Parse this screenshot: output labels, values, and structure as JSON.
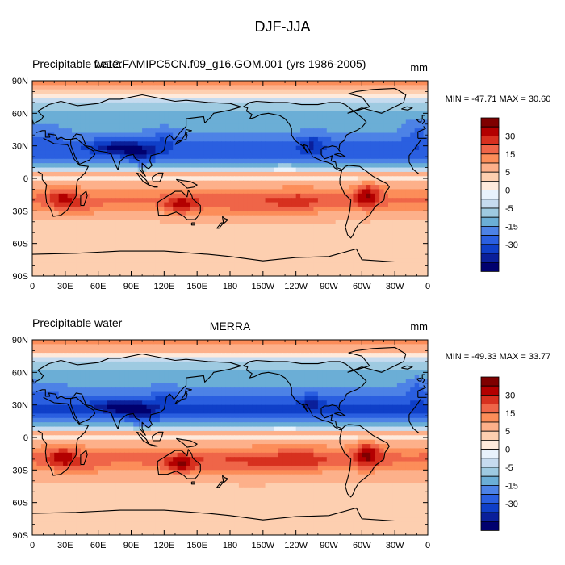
{
  "figure_title": "DJF-JJA",
  "chart_data": [
    {
      "type": "heatmap",
      "variable_label": "Precipitable water",
      "title": "f.e12.FAMIPC5CN.f09_g16.GOM.001 (yrs 1986-2005)",
      "units": "mm",
      "stats_text": "MIN = -47.71 MAX =  30.60",
      "min": -47.71,
      "max": 30.6,
      "x_ticks": [
        "0",
        "30E",
        "60E",
        "90E",
        "120E",
        "150E",
        "180",
        "150W",
        "120W",
        "90W",
        "60W",
        "30W",
        "0"
      ],
      "y_ticks": [
        "90N",
        "60N",
        "30N",
        "0",
        "30S",
        "60S",
        "90S"
      ],
      "xlim": [
        0,
        360
      ],
      "ylim": [
        -90,
        90
      ],
      "contour_levels": [
        -35,
        -30,
        -25,
        -20,
        -15,
        -10,
        -5,
        -2,
        0,
        2,
        5,
        10,
        15,
        20,
        25,
        30,
        35
      ],
      "colorbar_labels": [
        "30",
        "15",
        "5",
        "0",
        "-5",
        "-15",
        "-30"
      ]
    },
    {
      "type": "heatmap",
      "variable_label": "Precipitable water",
      "title": "MERRA",
      "units": "mm",
      "stats_text": "MIN = -49.33 MAX =  33.77",
      "min": -49.33,
      "max": 33.77,
      "x_ticks": [
        "0",
        "30E",
        "60E",
        "90E",
        "120E",
        "150E",
        "180",
        "150W",
        "120W",
        "90W",
        "60W",
        "30W",
        "0"
      ],
      "y_ticks": [
        "90N",
        "60N",
        "30N",
        "0",
        "30S",
        "60S",
        "90S"
      ],
      "xlim": [
        0,
        360
      ],
      "ylim": [
        -90,
        90
      ],
      "contour_levels": [
        -35,
        -30,
        -25,
        -20,
        -15,
        -10,
        -5,
        -2,
        0,
        2,
        5,
        10,
        15,
        20,
        25,
        30,
        35
      ],
      "colorbar_labels": [
        "30",
        "15",
        "5",
        "0",
        "-5",
        "-15",
        "-30"
      ]
    }
  ],
  "palette": [
    "#7f0000",
    "#b30000",
    "#d7301f",
    "#ef6548",
    "#fc8d59",
    "#fdb08a",
    "#fdcfb0",
    "#feeadc",
    "#e8f2fc",
    "#c6dbef",
    "#9ecae1",
    "#6baed6",
    "#4d82e6",
    "#2a5fe0",
    "#0f3fc8",
    "#0a1f9a",
    "#00006e"
  ]
}
